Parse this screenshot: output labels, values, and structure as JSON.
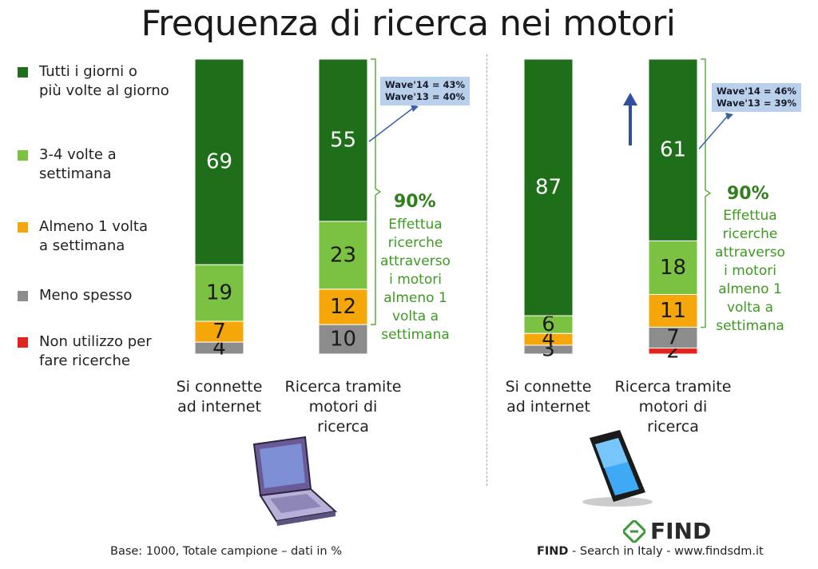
{
  "title": "Frequenza di ricerca nei motori",
  "legend": [
    {
      "label": "Tutti i giorni o\npiù volte al giorno",
      "color": "#1f6e1a"
    },
    {
      "label": "3-4 volte a\n settimana",
      "color": "#7cc242"
    },
    {
      "label": "Almeno 1 volta\na settimana",
      "color": "#f5a70a"
    },
    {
      "label": "Meno spesso",
      "color": "#8c8c8c"
    },
    {
      "label": "Non utilizzo per\nfare ricerche",
      "color": "#e3231c"
    }
  ],
  "chart_data": {
    "type": "bar",
    "stacked": true,
    "groups": [
      {
        "name": "PC",
        "bars": [
          {
            "category": "Si connette\nad internet",
            "values": [
              69,
              19,
              7,
              4,
              0
            ]
          },
          {
            "category": "Ricerca tramite\nmotori di\nricerca",
            "values": [
              55,
              23,
              12,
              10,
              0
            ]
          }
        ],
        "wave": [
          "Wave'14 = 43%",
          "Wave'13 = 40%"
        ],
        "summary_pct": "90%",
        "summary_text": "Effettua\nricerche\nattraverso\ni motori\nalmeno 1\nvolta a\nsettimana"
      },
      {
        "name": "Smartphone",
        "bars": [
          {
            "category": "Si connette\nad internet",
            "values": [
              87,
              6,
              4,
              3,
              0
            ]
          },
          {
            "category": "Ricerca tramite\nmotori di\nricerca",
            "values": [
              61,
              18,
              11,
              7,
              2
            ]
          }
        ],
        "wave": [
          "Wave'14 = 46%",
          "Wave'13 = 39%"
        ],
        "summary_pct": "90%",
        "summary_text": "Effettua\nricerche\nattraverso\ni motori\nalmeno 1\nvolta a\nsettimana"
      }
    ],
    "series": [
      "Tutti i giorni o più volte al giorno",
      "3-4 volte a settimana",
      "Almeno 1 volta a settimana",
      "Meno spesso",
      "Non utilizzo per fare ricerche"
    ]
  },
  "footer": {
    "base": "Base: 1000, Totale campione – dati in %",
    "brand": "FIND",
    "brand_tail": " - Search in Italy - www.findsdm.it",
    "logo_text": "FIND"
  }
}
